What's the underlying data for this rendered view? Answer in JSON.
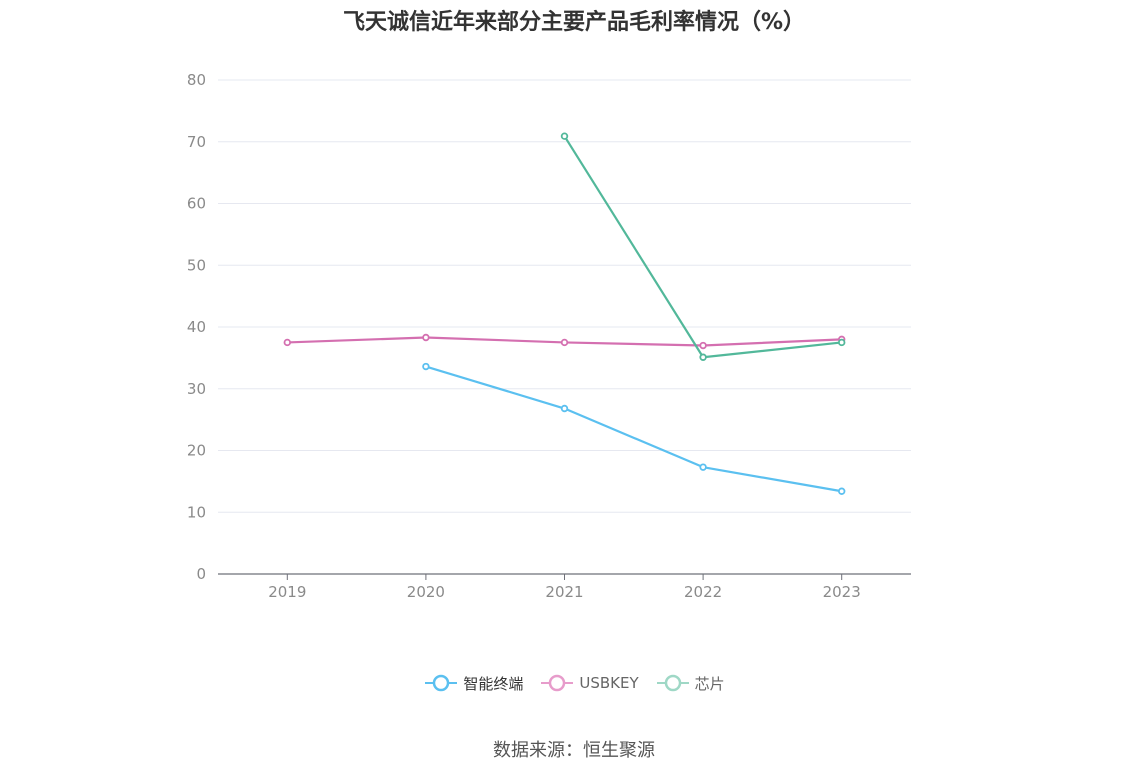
{
  "chart_data": {
    "type": "line",
    "title": "飞天诚信近年来部分主要产品毛利率情况（%）",
    "categories": [
      "2019",
      "2020",
      "2021",
      "2022",
      "2023"
    ],
    "ylim": [
      0,
      80
    ],
    "yticks": [
      0,
      10,
      20,
      30,
      40,
      50,
      60,
      70,
      80
    ],
    "ytick_labels": [
      "0",
      "10",
      "20",
      "30",
      "40",
      "50",
      "60",
      "70",
      "80"
    ],
    "grid": true,
    "legend_position": "bottom",
    "series": [
      {
        "name": "智能终端",
        "color": "#5bc0f0",
        "values": [
          null,
          33.6,
          26.8,
          17.3,
          13.4
        ]
      },
      {
        "name": "USBKEY",
        "color": "#d46fb0",
        "values": [
          37.5,
          38.3,
          37.5,
          37.0,
          38.0
        ]
      },
      {
        "name": "芯片",
        "color": "#52b89a",
        "values": [
          null,
          null,
          70.9,
          35.1,
          37.5
        ]
      }
    ]
  },
  "legend": {
    "items": [
      {
        "label": "智能终端",
        "color": "#5bc0f0"
      },
      {
        "label": "USBKEY",
        "color": "#e79ccb"
      },
      {
        "label": "芯片",
        "color": "#9fd8c6"
      }
    ]
  },
  "source_text": "数据来源：恒生聚源"
}
